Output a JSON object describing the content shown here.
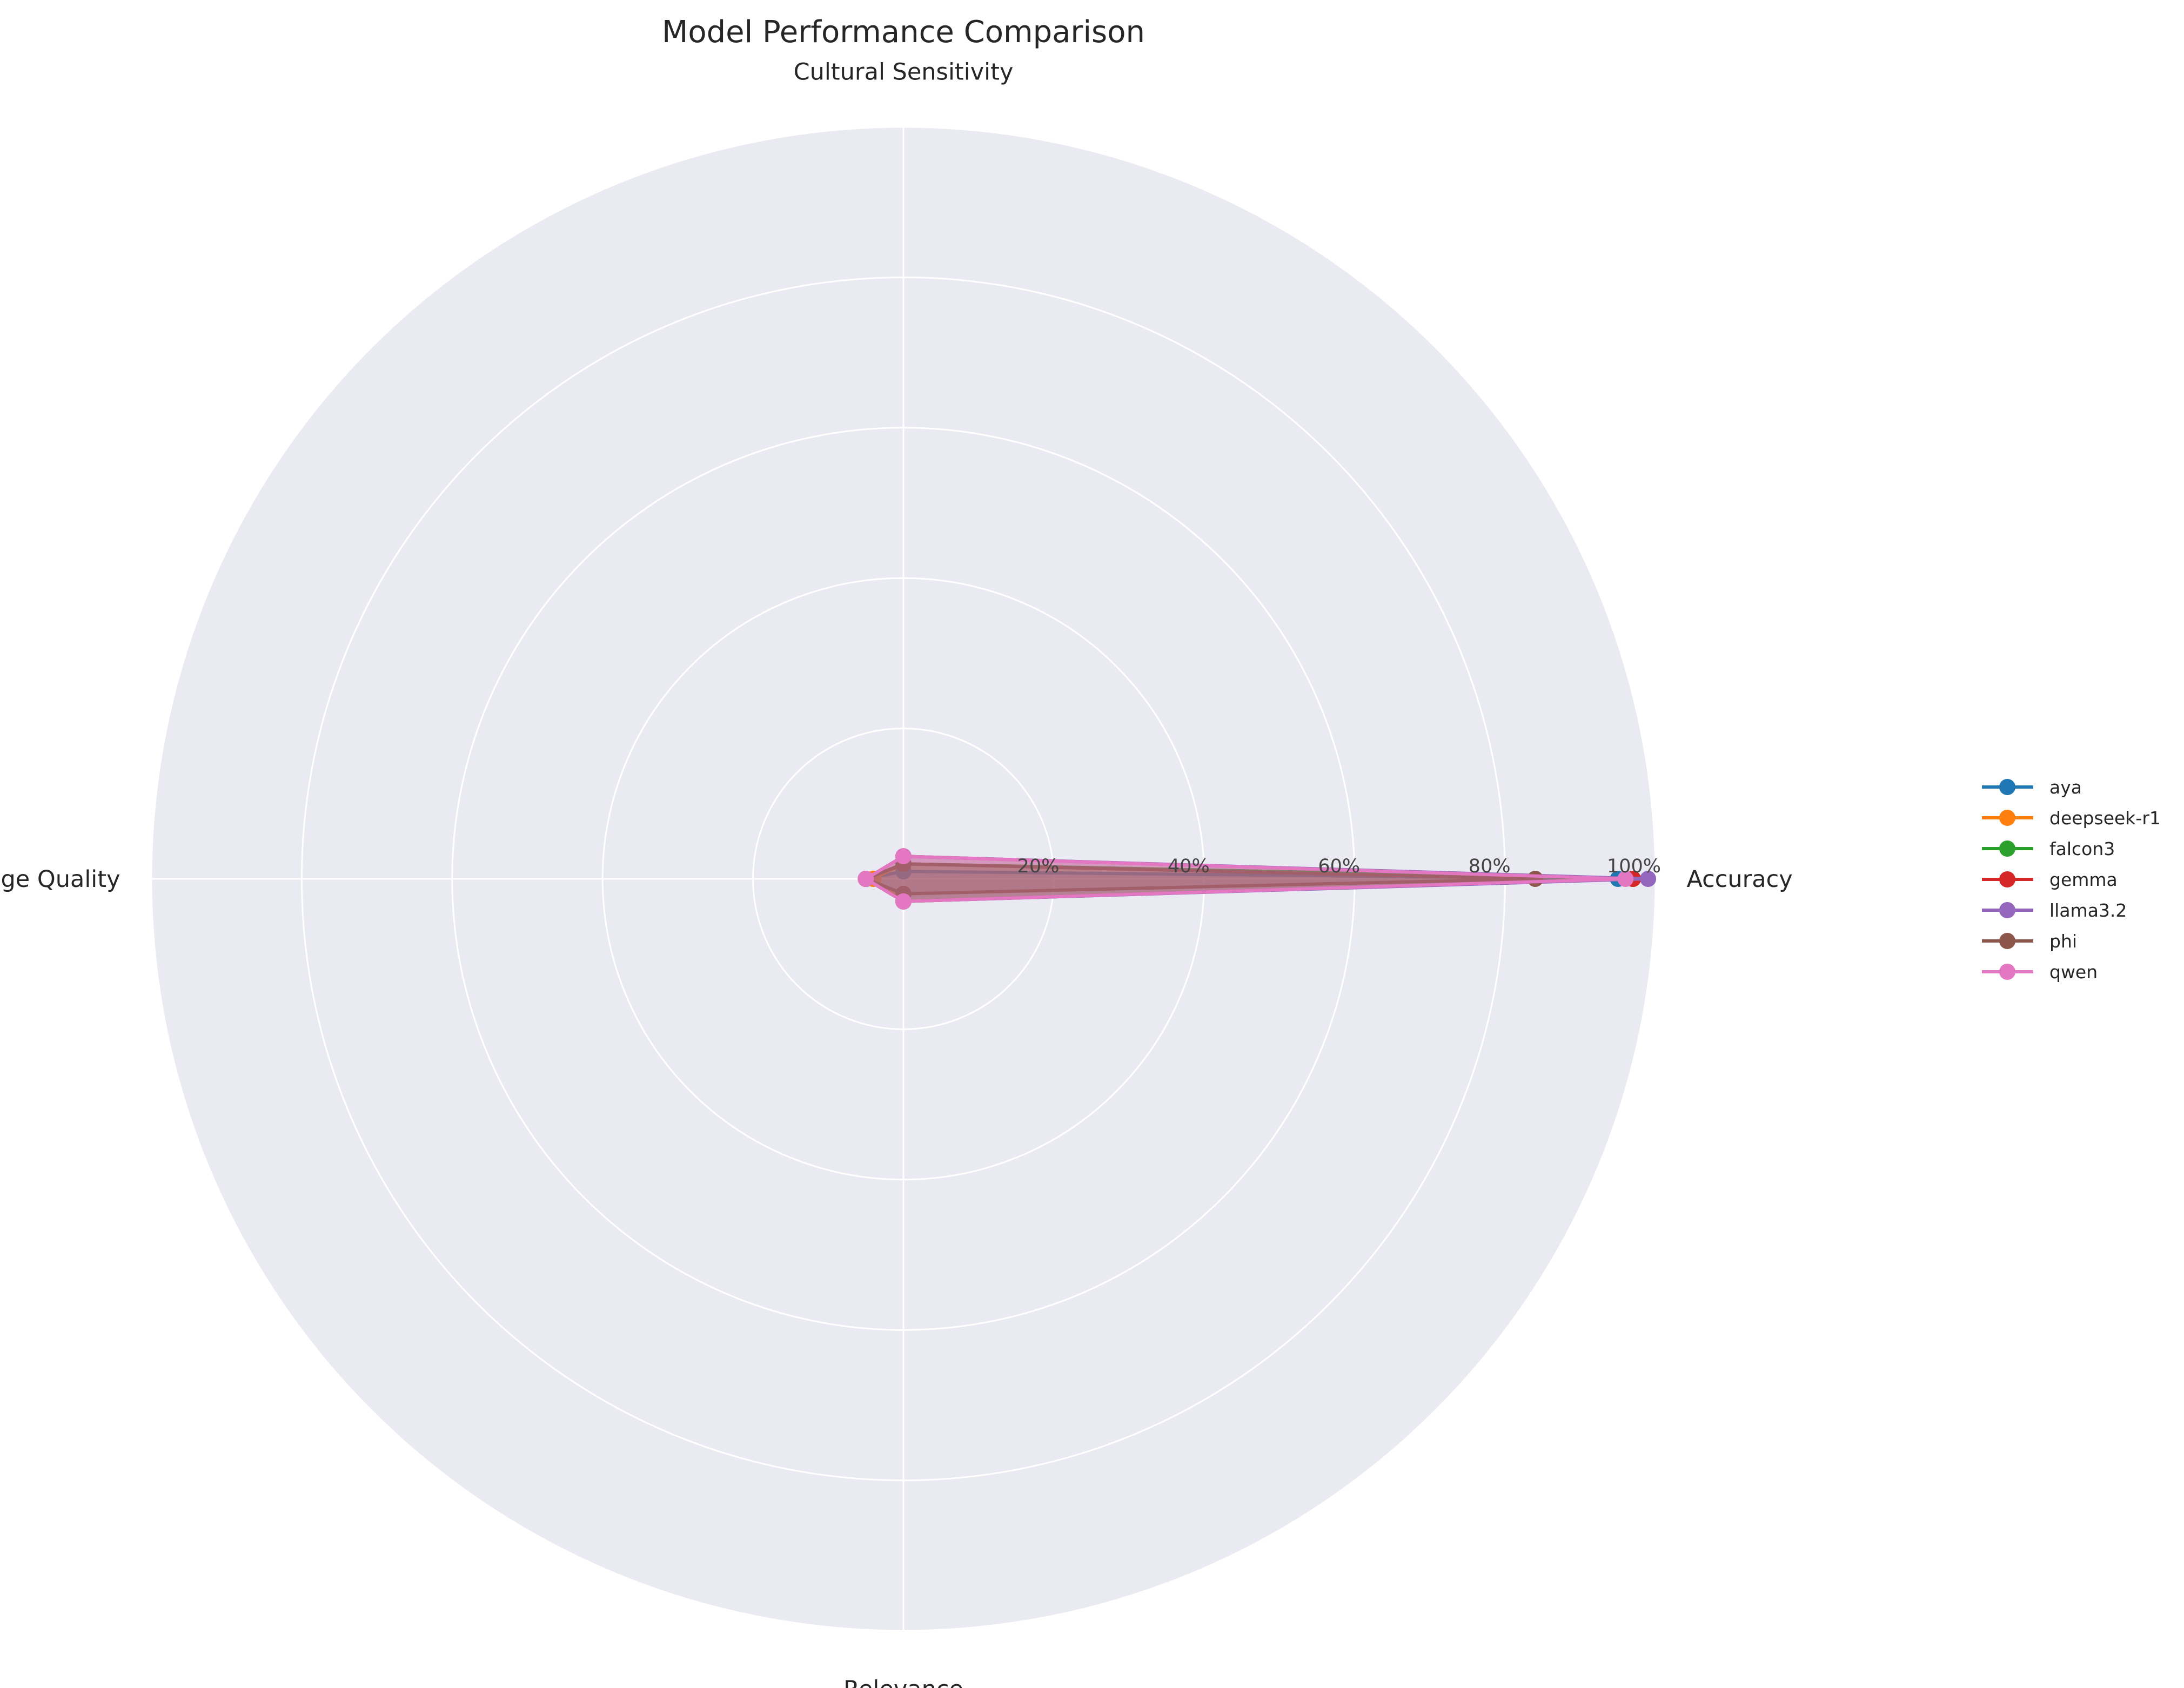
{
  "chart_data": {
    "type": "radar",
    "title": "Model Performance Comparison",
    "axes": [
      "Accuracy",
      "Cultural Sensitivity",
      "Language Quality",
      "Relevance"
    ],
    "r_ticks": [
      "20%",
      "40%",
      "60%",
      "80%",
      "100%"
    ],
    "r_range": [
      0,
      1
    ],
    "grid": true,
    "legend_position": "right",
    "series": [
      {
        "name": "aya",
        "color": "#1f77b4",
        "values": [
          0.95,
          0.01,
          0.05,
          0.03
        ]
      },
      {
        "name": "deepseek-r1",
        "color": "#ff7f0e",
        "values": [
          0.97,
          0.02,
          0.04,
          0.03
        ]
      },
      {
        "name": "falcon3",
        "color": "#2ca02c",
        "values": [
          0.97,
          0.02,
          0.05,
          0.03
        ]
      },
      {
        "name": "gemma",
        "color": "#d62728",
        "values": [
          0.97,
          0.03,
          0.05,
          0.03
        ]
      },
      {
        "name": "llama3.2",
        "color": "#9467bd",
        "values": [
          0.99,
          0.03,
          0.05,
          0.03
        ]
      },
      {
        "name": "phi",
        "color": "#8c564b",
        "values": [
          0.84,
          0.02,
          0.05,
          0.02
        ]
      },
      {
        "name": "qwen",
        "color": "#e377c2",
        "values": [
          0.96,
          0.03,
          0.05,
          0.03
        ]
      }
    ]
  }
}
